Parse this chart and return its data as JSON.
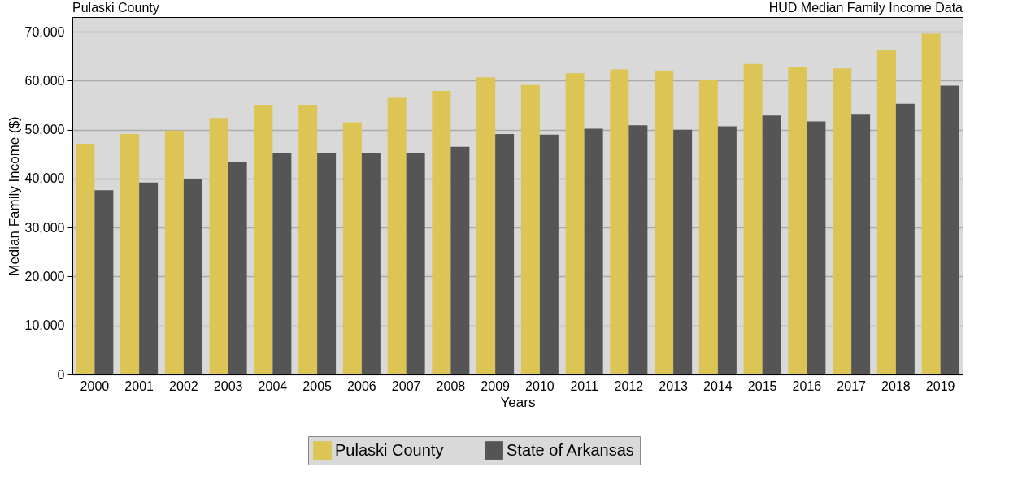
{
  "chart_data": {
    "type": "bar",
    "title": "Pulaski County",
    "annotations": [
      "HUD Median Family Income Data"
    ],
    "xlabel": "Years",
    "ylabel": "Median Family Income ($)",
    "categories": [
      "2000",
      "2001",
      "2002",
      "2003",
      "2004",
      "2005",
      "2006",
      "2007",
      "2008",
      "2009",
      "2010",
      "2011",
      "2012",
      "2013",
      "2014",
      "2015",
      "2016",
      "2017",
      "2018",
      "2019"
    ],
    "series": [
      {
        "name": "Pulaski County",
        "color": "#dcc554",
        "values": [
          47100,
          49100,
          49800,
          52400,
          55100,
          55100,
          51500,
          56500,
          57900,
          60700,
          59100,
          61500,
          62300,
          62100,
          60100,
          63400,
          62800,
          62500,
          66300,
          69600
        ]
      },
      {
        "name": "State of Arkansas",
        "color": "#555555",
        "values": [
          37600,
          39200,
          39800,
          43400,
          45300,
          45300,
          45300,
          45300,
          46500,
          49100,
          49000,
          50200,
          50900,
          50000,
          50700,
          52900,
          51700,
          53200,
          55300,
          59000
        ]
      }
    ],
    "ylim": [
      0,
      73000
    ],
    "yticks": [
      {
        "value": 0,
        "label": "0"
      },
      {
        "value": 10000,
        "label": "10,000"
      },
      {
        "value": 20000,
        "label": "20,000"
      },
      {
        "value": 30000,
        "label": "30,000"
      },
      {
        "value": 40000,
        "label": "40,000"
      },
      {
        "value": 50000,
        "label": "50,000"
      },
      {
        "value": 60000,
        "label": "60,000"
      },
      {
        "value": 70000,
        "label": "70,000"
      }
    ],
    "grid": "y",
    "legend": "bottom"
  }
}
